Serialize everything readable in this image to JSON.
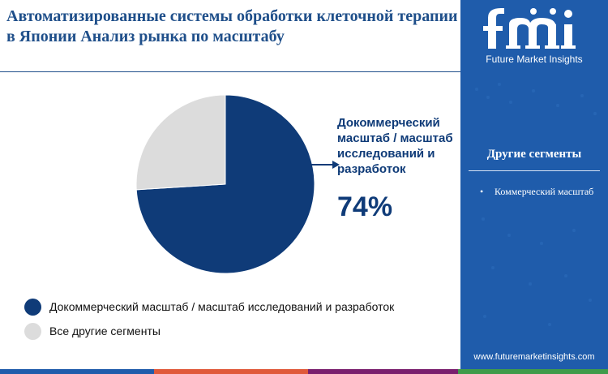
{
  "title": "Автоматизированные системы обработки клеточной терапии в Японии Анализ рынка по масштабу",
  "chart_data": {
    "type": "pie",
    "slices": [
      {
        "label": "Докоммерческий масштаб / масштаб исследований и разработок",
        "value": 74,
        "color": "#0f3b78"
      },
      {
        "label": "Все другие сегменты",
        "value": 26,
        "color": "#dcdcdc"
      }
    ],
    "callout_label": "Докоммерческий масштаб / масштаб исследований и разработок",
    "callout_value": "74%"
  },
  "legend": [
    {
      "label": "Докоммерческий масштаб / масштаб исследований и разработок",
      "color": "#0f3b78"
    },
    {
      "label": "Все другие сегменты",
      "color": "#dcdcdc"
    }
  ],
  "sidebar": {
    "logo_text": "fmi",
    "brand": "Future Market Insights",
    "other_segments_heading": "Другие сегменты",
    "other_segments": [
      "Коммерческий масштаб"
    ],
    "website": "www.futuremarketinsights.com"
  },
  "colors": {
    "bottom_bar": [
      "#1f5cab",
      "#e0593a",
      "#7a1f6e",
      "#3f9b4a"
    ]
  }
}
